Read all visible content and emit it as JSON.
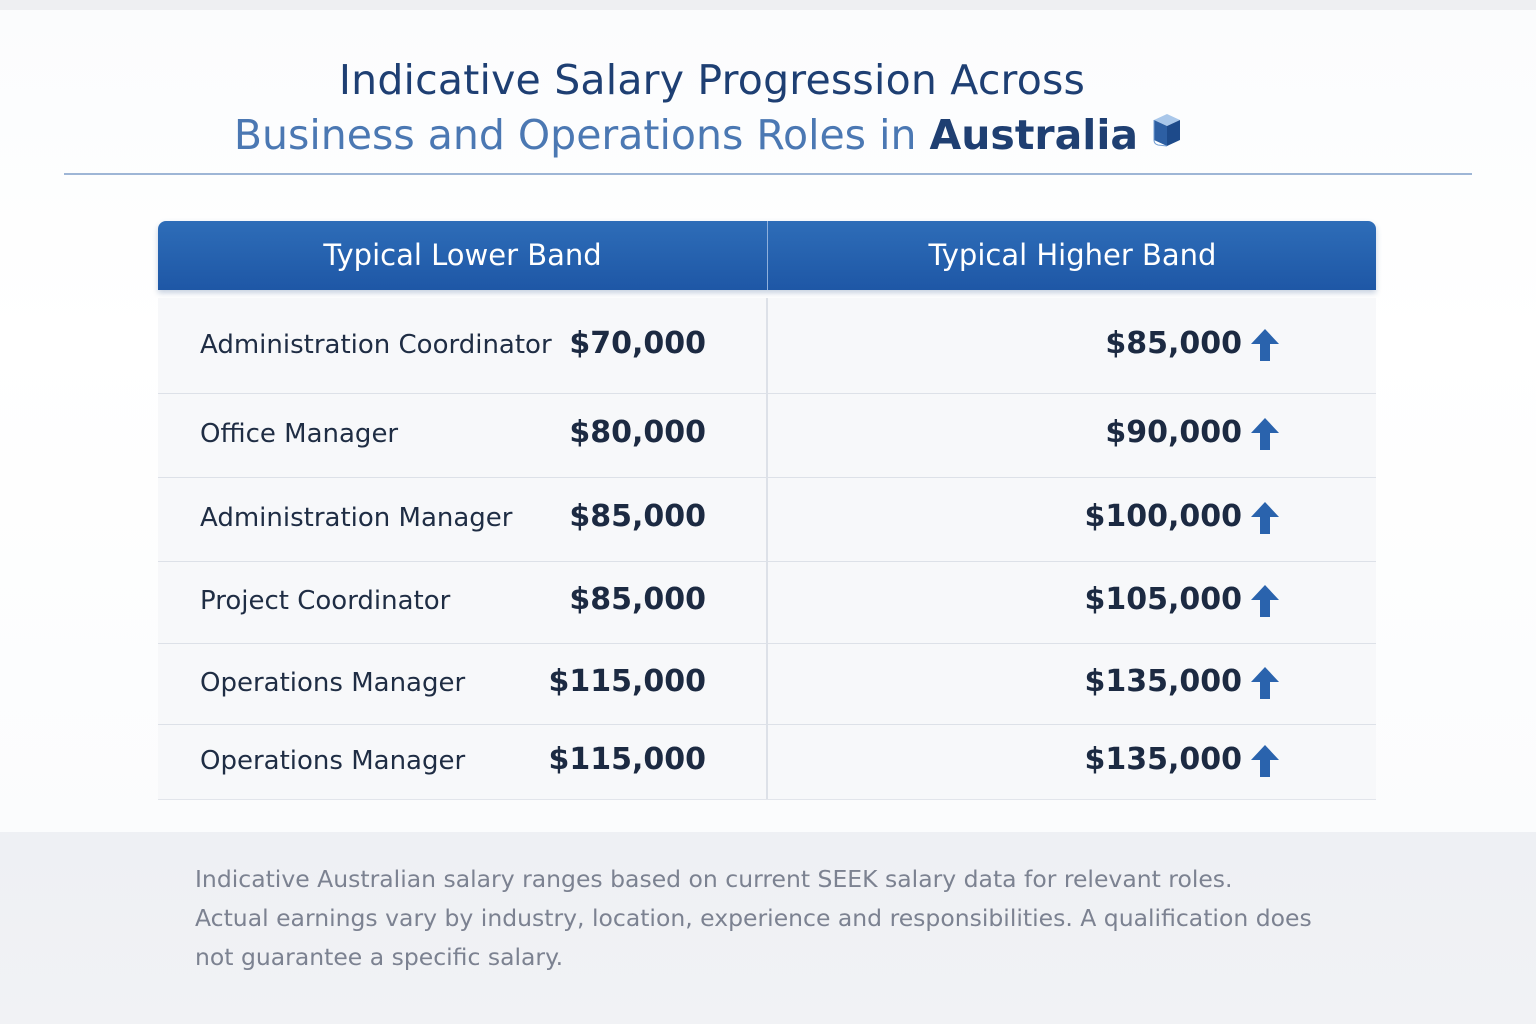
{
  "title": {
    "line1": "Indicative Salary Progression Across",
    "line2_prefix": "Business and Operations Roles in ",
    "line2_emphasis": "Australia",
    "icon": "cube-icon"
  },
  "table": {
    "headers": {
      "lower": "Typical Lower Band",
      "higher": "Typical Higher Band"
    },
    "rows": [
      {
        "role": "Administration Coordinator",
        "lower": "$70,000",
        "higher": "$85,000",
        "trend_icon": "arrow-up-icon"
      },
      {
        "role": "Office Manager",
        "lower": "$80,000",
        "higher": "$90,000",
        "trend_icon": "arrow-up-icon"
      },
      {
        "role": "Administration Manager",
        "lower": "$85,000",
        "higher": "$100,000",
        "trend_icon": "arrow-up-icon"
      },
      {
        "role": "Project Coordinator",
        "lower": "$85,000",
        "higher": "$105,000",
        "trend_icon": "arrow-up-icon"
      },
      {
        "role": "Operations Manager",
        "lower": "$115,000",
        "higher": "$135,000",
        "trend_icon": "arrow-up-icon"
      },
      {
        "role": "Operations Manager",
        "lower": "$115,000",
        "higher": "$135,000",
        "trend_icon": "arrow-up-icon"
      }
    ]
  },
  "footnote": {
    "line1": "Indicative Australian salary ranges based on current SEEK salary data for relevant roles.",
    "line2": "Actual earnings vary by industry, location, experience and responsibilities. A qualification does",
    "line3": "not guarantee a specific salary."
  },
  "colors": {
    "header_blue": "#1e57a6",
    "title_navy": "#1e3f73",
    "title_light_blue": "#4b78b3",
    "arrow_blue": "#2a63ad"
  }
}
